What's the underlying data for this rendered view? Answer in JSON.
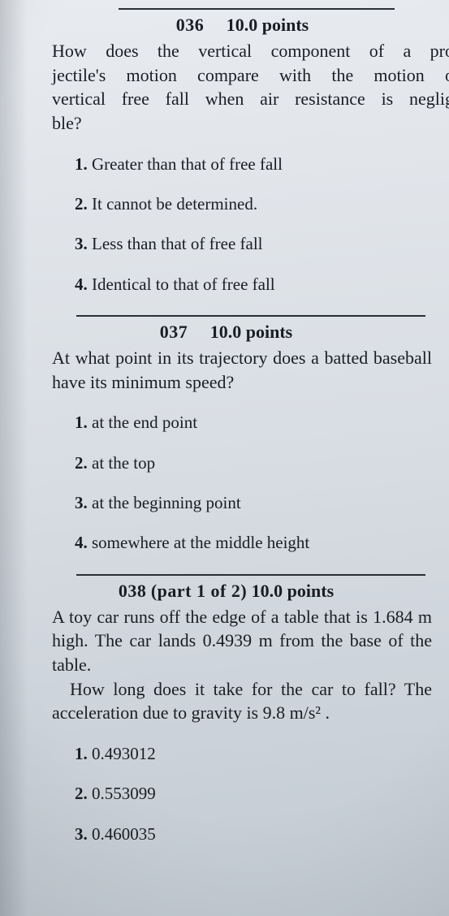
{
  "colors": {
    "bg_top": "#e8ebef",
    "bg_mid": "#d8dde3",
    "bg_bot": "#c2cad2",
    "text": "#1a1e24",
    "rule": "#2a2f36"
  },
  "typography": {
    "family": "Computer Modern / serif",
    "body_size_pt": 16,
    "line_height": 1.35,
    "header_weight": "bold"
  },
  "questions": [
    {
      "number": "036",
      "points": "10.0 points",
      "prompt": "How does the vertical component of a projectile's motion compare with the motion of vertical free fall when air resistance is negligible?",
      "prompt_lines_rightcut": [
        "How does the vertical component of a pro",
        "jectile's motion compare with the motion o",
        "vertical free fall when air resistance is neglig",
        "ble?"
      ],
      "choices": [
        "Greater than that of free fall",
        "It cannot be determined.",
        "Less than that of free fall",
        "Identical to that of free fall"
      ]
    },
    {
      "number": "037",
      "points": "10.0 points",
      "prompt": "At what point in its trajectory does a batted baseball have its minimum speed?",
      "choices": [
        "at the end point",
        "at the top",
        "at the beginning point",
        "somewhere at the middle height"
      ]
    },
    {
      "number": "038",
      "part": "(part 1 of 2)",
      "points": "10.0 points",
      "prompt_a": "A toy car runs off the edge of a table that is 1.684 m high.  The car lands 0.4939 m from the base of the table.",
      "prompt_b": "How long does it take for the car to fall? The acceleration due to gravity is 9.8 m/s² .",
      "values": {
        "table_height_m": 1.684,
        "landing_distance_m": 0.4939,
        "g_m_per_s2": 9.8
      },
      "choices": [
        "0.493012",
        "0.553099",
        "0.460035"
      ]
    }
  ]
}
